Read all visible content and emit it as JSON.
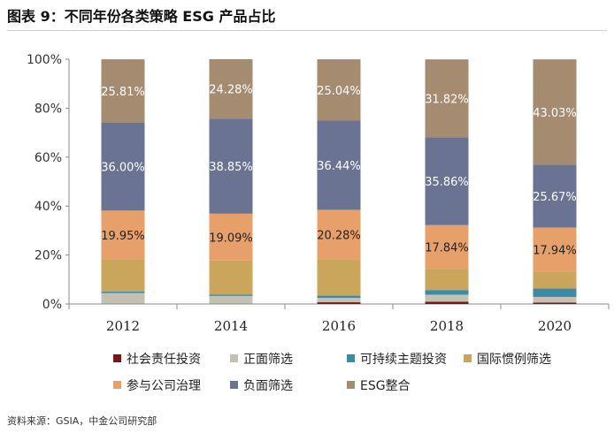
{
  "figure": {
    "title_prefix": "图表 9：",
    "title_main": "不同年份各类策略 ESG 产品占比",
    "source": "资料来源：GSIA，中金公司研究部"
  },
  "chart_data": {
    "type": "bar",
    "stacked": true,
    "categories": [
      "2012",
      "2014",
      "2016",
      "2018",
      "2020"
    ],
    "ylim": [
      0,
      100
    ],
    "yticks": [
      "0%",
      "20%",
      "40%",
      "60%",
      "80%",
      "100%"
    ],
    "legend_position": "bottom",
    "series": [
      {
        "name": "社会责任投资",
        "color": "#7b1616",
        "values": [
          0.1,
          0.1,
          0.7,
          0.9,
          0.6
        ]
      },
      {
        "name": "正面筛选",
        "color": "#c4c1b3",
        "values": [
          4.4,
          3.2,
          1.8,
          2.9,
          2.3
        ]
      },
      {
        "name": "可持续主题投资",
        "color": "#3b8ba8",
        "values": [
          0.6,
          0.5,
          0.9,
          1.9,
          3.4
        ]
      },
      {
        "name": "国际惯例筛选",
        "color": "#c9a65b",
        "values": [
          13.1,
          14.0,
          14.8,
          8.7,
          7.0
        ]
      },
      {
        "name": "参与公司治理",
        "color": "#e8a06a",
        "values": [
          19.95,
          19.09,
          20.28,
          17.84,
          17.94
        ]
      },
      {
        "name": "负面筛选",
        "color": "#6a7391",
        "values": [
          36.0,
          38.85,
          36.44,
          35.86,
          25.67
        ]
      },
      {
        "name": "ESG整合",
        "color": "#a58b6f",
        "values": [
          25.81,
          24.28,
          25.04,
          31.82,
          43.03
        ]
      }
    ],
    "data_labels": [
      {
        "series": 4,
        "texts": [
          "19.95%",
          "19.09%",
          "20.28%",
          "17.84%",
          "17.94%"
        ]
      },
      {
        "series": 5,
        "texts": [
          "36.00%",
          "38.85%",
          "36.44%",
          "35.86%",
          "25.67%"
        ]
      },
      {
        "series": 6,
        "texts": [
          "25.81%",
          "24.28%",
          "25.04%",
          "31.82%",
          "43.03%"
        ]
      }
    ]
  }
}
